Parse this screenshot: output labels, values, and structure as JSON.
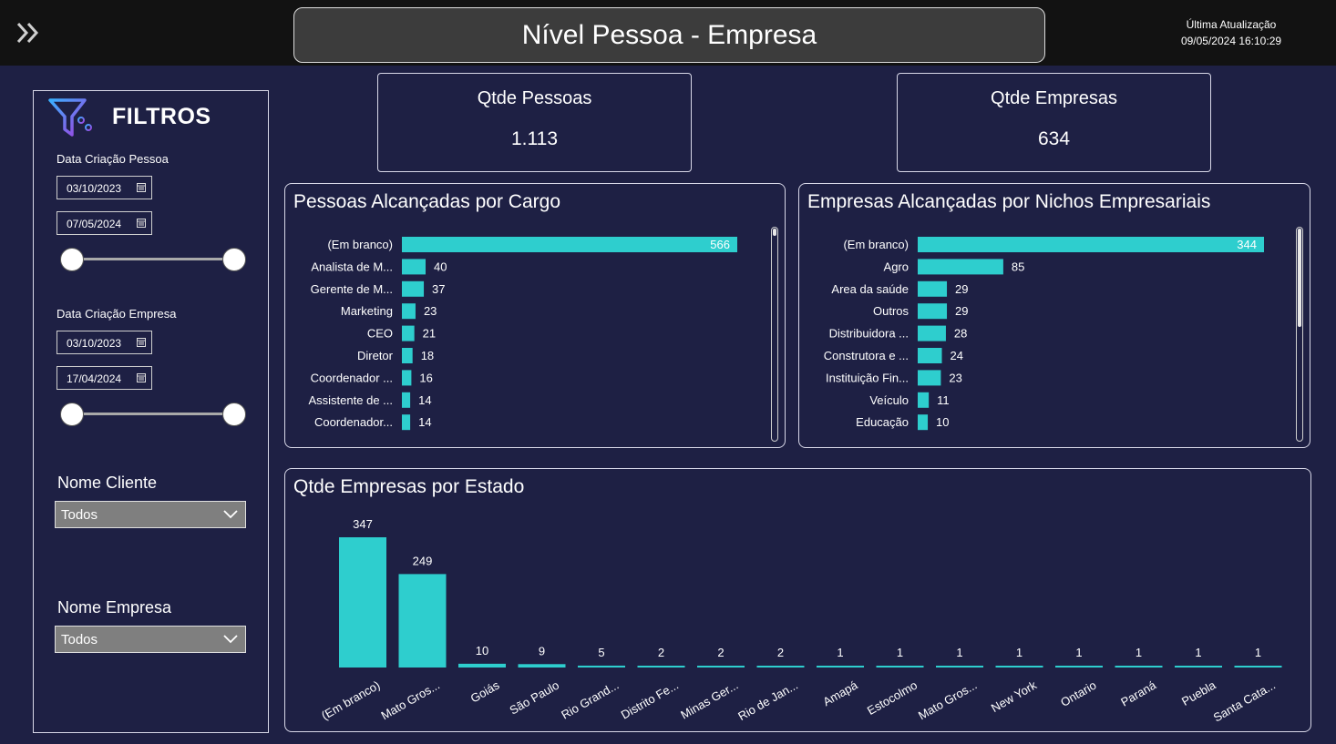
{
  "header": {
    "title": "Nível Pessoa - Empresa",
    "update_label": "Última Atualização",
    "update_value": "09/05/2024 16:10:29"
  },
  "filters": {
    "title": "FILTROS",
    "pessoa_label": "Data Criação Pessoa",
    "pessoa_start": "03/10/2023",
    "pessoa_end": "07/05/2024",
    "empresa_label": "Data Criação Empresa",
    "empresa_start": "03/10/2023",
    "empresa_end": "17/04/2024",
    "cliente_label": "Nome Cliente",
    "cliente_value": "Todos",
    "nome_empresa_label": "Nome Empresa",
    "nome_empresa_value": "Todos"
  },
  "kpis": {
    "pessoas_label": "Qtde Pessoas",
    "pessoas_value": "1.113",
    "empresas_label": "Qtde Empresas",
    "empresas_value": "634"
  },
  "colors": {
    "bar": "#2ecece",
    "background": "#1e2044",
    "header": "#121212"
  },
  "icons": [
    "double-chevron-right-icon",
    "filter-icon",
    "calendar-icon",
    "chevron-down-icon"
  ],
  "chart_data": [
    {
      "type": "bar",
      "orientation": "horizontal",
      "title": "Pessoas Alcançadas por Cargo",
      "categories": [
        "(Em branco)",
        "Analista de M...",
        "Gerente de M...",
        "Marketing",
        "CEO",
        "Diretor",
        "Coordenador ...",
        "Assistente de ...",
        "Coordenador..."
      ],
      "values": [
        566,
        40,
        37,
        23,
        21,
        18,
        16,
        14,
        14
      ],
      "xlim": [
        0,
        566
      ]
    },
    {
      "type": "bar",
      "orientation": "horizontal",
      "title": "Empresas Alcançadas por Nichos Empresariais",
      "categories": [
        "(Em branco)",
        "Agro",
        "Area da saúde",
        "Outros",
        "Distribuidora ...",
        "Construtora e ...",
        "Instituição Fin...",
        "Veículo",
        "Educação"
      ],
      "values": [
        344,
        85,
        29,
        29,
        28,
        24,
        23,
        11,
        10
      ],
      "xlim": [
        0,
        344
      ]
    },
    {
      "type": "bar",
      "orientation": "vertical",
      "title": "Qtde Empresas por Estado",
      "categories": [
        "(Em branco)",
        "Mato Gros...",
        "Goiás",
        "São Paulo",
        "Rio Grand...",
        "Distrito Fe...",
        "Minas Ger...",
        "Rio de Jan...",
        "Amapá",
        "Estocolmo",
        "Mato Gros...",
        "New York",
        "Ontario",
        "Paraná",
        "Puebla",
        "Santa Cata..."
      ],
      "values": [
        347,
        249,
        10,
        9,
        5,
        2,
        2,
        2,
        1,
        1,
        1,
        1,
        1,
        1,
        1,
        1
      ],
      "ylim": [
        0,
        347
      ]
    }
  ]
}
